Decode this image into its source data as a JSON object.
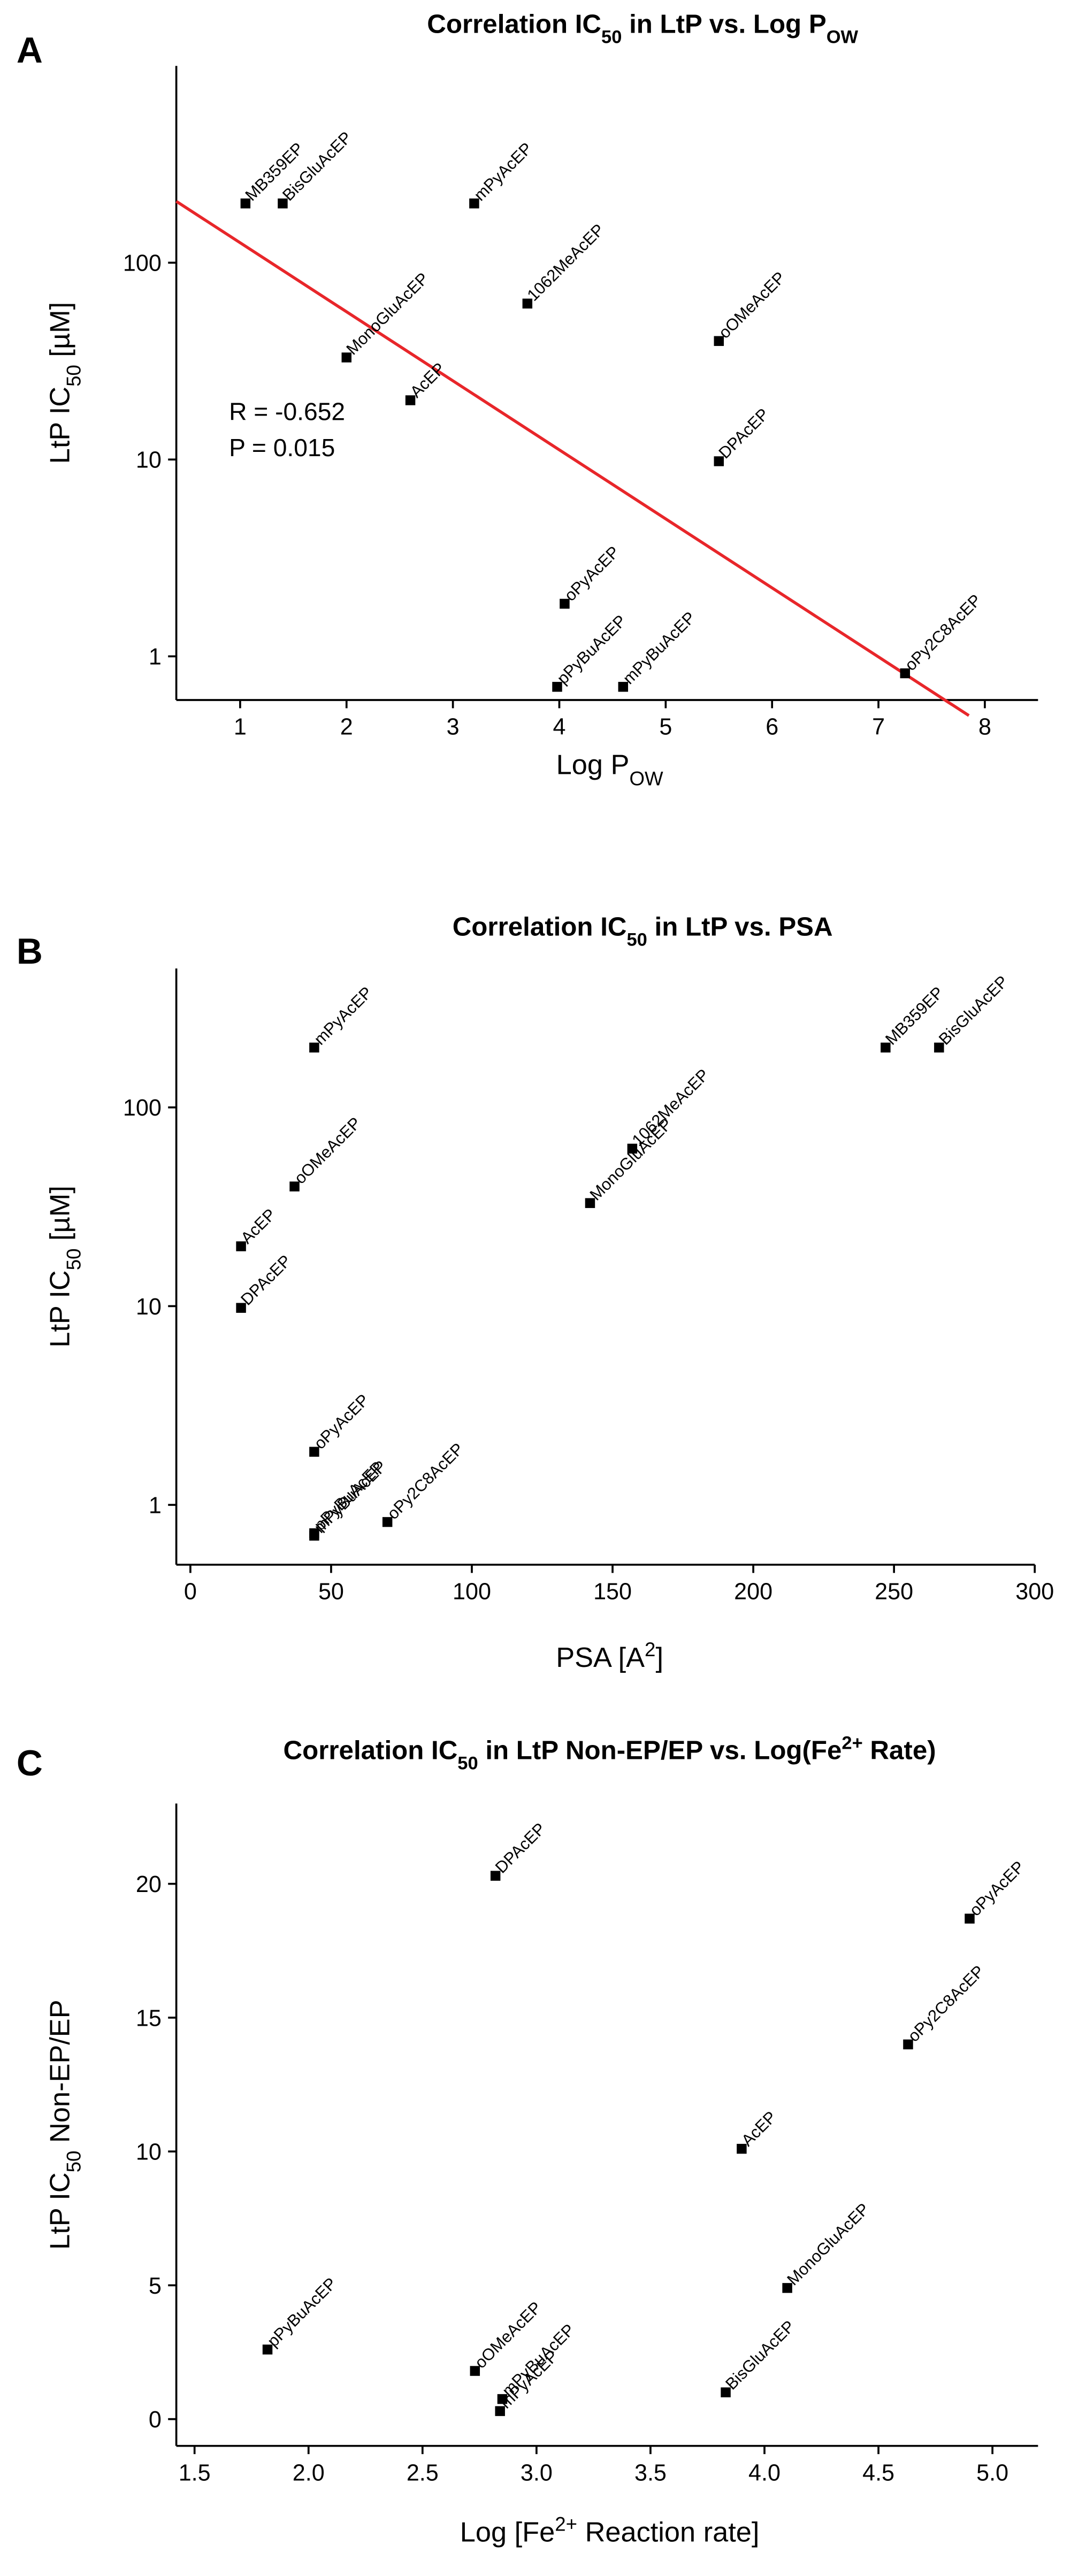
{
  "chart_data": [
    {
      "type": "scatter",
      "panel": "A",
      "title": [
        "Correlation IC",
        {
          "text": "50",
          "script": "sub"
        },
        " in LtP vs. Log P",
        {
          "text": "OW",
          "script": "sub"
        }
      ],
      "xlabel": [
        "Log P",
        {
          "text": "OW",
          "script": "sub"
        }
      ],
      "ylabel": [
        "LtP IC",
        {
          "text": "50",
          "script": "sub"
        },
        " [µM]"
      ],
      "yscale": "log",
      "color": "#000000",
      "xlim": [
        0.4,
        8.5
      ],
      "xticks": [
        1,
        2,
        3,
        4,
        5,
        6,
        7,
        8
      ],
      "ylim": [
        0.6,
        1000
      ],
      "yticks": [
        1,
        10,
        100
      ],
      "x": [
        1.05,
        1.4,
        3.2,
        3.7,
        2.0,
        2.6,
        5.5,
        5.5,
        4.05,
        3.98,
        4.6,
        7.25
      ],
      "values": [
        200,
        200,
        200,
        62,
        33,
        20,
        40,
        9.8,
        1.85,
        0.7,
        0.7,
        0.82
      ],
      "point_labels": [
        "MB359EP",
        "BisGluAcEP",
        "mPyAcEP",
        "1062MeAcEP",
        "MonoGluAcEP",
        "AcEP",
        "oOMeAcEP",
        "DPAcEP",
        "oPyAcEP",
        "pPyBuAcEP",
        "mPyBuAcEP",
        "oPy2C8AcEP"
      ],
      "fit_line": {
        "x": [
          0.4,
          7.85
        ],
        "values": [
          205,
          0.5
        ],
        "color": "#e8262a"
      },
      "annotations": [
        "R = -0.652",
        "P = 0.015"
      ],
      "annotation_color": "#e8262a"
    },
    {
      "type": "scatter",
      "panel": "B",
      "title": [
        "Correlation IC",
        {
          "text": "50",
          "script": "sub"
        },
        " in LtP vs. PSA"
      ],
      "xlabel": [
        "PSA [A",
        {
          "text": "2",
          "script": "super"
        },
        "]"
      ],
      "ylabel": [
        "LtP IC",
        {
          "text": "50",
          "script": "sub"
        },
        " [µM]"
      ],
      "yscale": "log",
      "color": "#000000",
      "xlim": [
        -5,
        300
      ],
      "xticks": [
        0,
        50,
        100,
        150,
        200,
        250,
        300
      ],
      "ylim": [
        0.5,
        500
      ],
      "yticks": [
        1,
        10,
        100
      ],
      "x": [
        44,
        247,
        266,
        157,
        142,
        37,
        18,
        18,
        44,
        44,
        44,
        70
      ],
      "values": [
        200,
        200,
        200,
        62,
        33,
        40,
        20,
        9.8,
        1.85,
        0.72,
        0.7,
        0.82
      ],
      "point_labels": [
        "mPyAcEP",
        "MB359EP",
        "BisGluAcEP",
        "1062MeAcEP",
        "MonoGluAcEP",
        "oOMeAcEP",
        "AcEP",
        "DPAcEP",
        "oPyAcEP",
        "pPyBuAcEP",
        "mPyBuAcEP",
        "oPy2C8AcEP"
      ]
    },
    {
      "type": "scatter",
      "panel": "C",
      "title": [
        "Correlation IC",
        {
          "text": "50",
          "script": "sub"
        },
        " in LtP Non-EP/EP vs. Log(Fe",
        {
          "text": "2+",
          "script": "super"
        },
        " Rate)"
      ],
      "xlabel": [
        "Log [Fe",
        {
          "text": "2+",
          "script": "super"
        },
        " Reaction rate]"
      ],
      "ylabel": [
        "LtP IC",
        {
          "text": "50",
          "script": "sub"
        },
        " Non-EP/EP"
      ],
      "yscale": "linear",
      "color": "#000000",
      "xlim": [
        1.42,
        5.2
      ],
      "xticks": [
        1.5,
        {
          "value": 2,
          "label": "2.0"
        },
        2.5,
        {
          "value": 3,
          "label": "3.0"
        },
        3.5,
        {
          "value": 4,
          "label": "4.0"
        },
        4.5,
        {
          "value": 5,
          "label": "5.0"
        }
      ],
      "ylim": [
        -1,
        23
      ],
      "yticks": [
        0,
        5,
        10,
        15,
        20
      ],
      "x": [
        2.82,
        4.9,
        4.63,
        3.9,
        4.1,
        1.82,
        2.73,
        2.85,
        2.84,
        3.83
      ],
      "values": [
        20.3,
        18.7,
        14.0,
        10.1,
        4.9,
        2.6,
        1.8,
        0.75,
        0.3,
        1.0
      ],
      "point_labels": [
        "DPAcEP",
        "oPyAcEP",
        "oPy2C8AcEP",
        "AcEP",
        "MonoGluAcEP",
        "pPyBuAcEP",
        "oOMeAcEP",
        "mPyBuAcEP",
        "mPyAcEP",
        "BisGluAcEP"
      ]
    }
  ]
}
